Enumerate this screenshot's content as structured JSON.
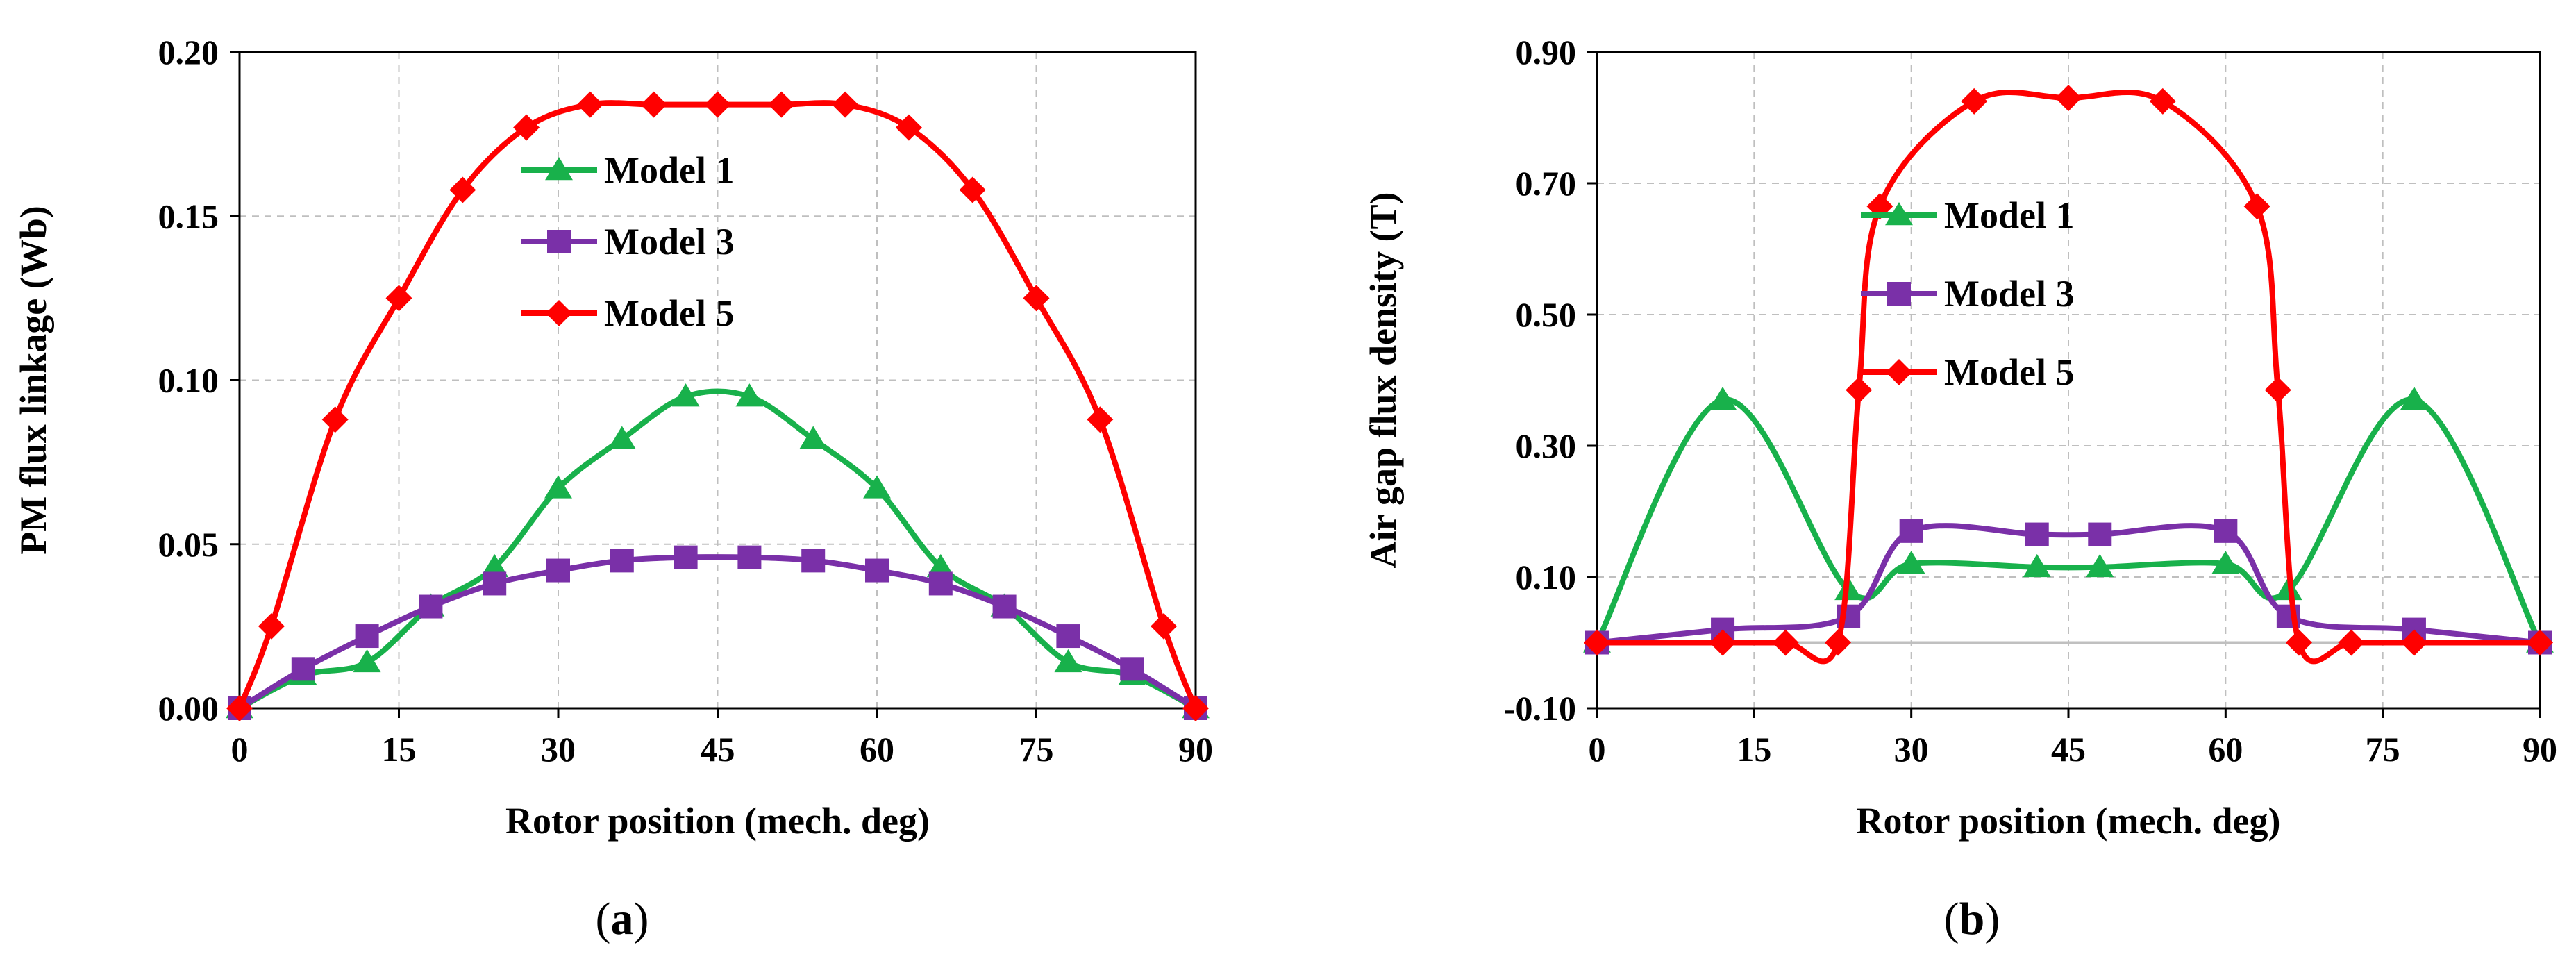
{
  "colors": {
    "model1": "#18b14b",
    "model3": "#7a30a8",
    "model5": "#ff0000",
    "grid": "#bfbfbf",
    "zero": "#c0c0c0"
  },
  "chart_data": [
    {
      "type": "line",
      "panel": "(a)",
      "panel_letter": "a",
      "xlabel": "Rotor position (mech. deg)",
      "ylabel": "PM flux linkage (Wb)",
      "xlim": [
        0,
        90
      ],
      "ylim": [
        0,
        0.2
      ],
      "xticks": [
        0,
        15,
        30,
        45,
        60,
        75,
        90
      ],
      "yticks": [
        0,
        0.05,
        0.1,
        0.15,
        0.2
      ],
      "xtick_labels": [
        "0",
        "15",
        "30",
        "45",
        "60",
        "75",
        "90"
      ],
      "ytick_labels": [
        "0.00",
        "0.05",
        "0.10",
        "0.15",
        "0.20"
      ],
      "legend": [
        "Model 1",
        "Model 3",
        "Model 5"
      ],
      "series": [
        {
          "name": "Model 1",
          "marker": "triangle",
          "x": [
            0,
            6,
            12,
            18,
            24,
            30,
            36,
            42,
            48,
            54,
            60,
            66,
            72,
            78,
            84,
            90
          ],
          "y": [
            0,
            0.01,
            0.014,
            0.031,
            0.043,
            0.067,
            0.082,
            0.095,
            0.095,
            0.082,
            0.067,
            0.043,
            0.031,
            0.014,
            0.01,
            0
          ]
        },
        {
          "name": "Model 3",
          "marker": "square",
          "x": [
            0,
            6,
            12,
            18,
            24,
            30,
            36,
            42,
            48,
            54,
            60,
            66,
            72,
            78,
            84,
            90
          ],
          "y": [
            0,
            0.012,
            0.022,
            0.031,
            0.038,
            0.042,
            0.045,
            0.046,
            0.046,
            0.045,
            0.042,
            0.038,
            0.031,
            0.022,
            0.012,
            0
          ]
        },
        {
          "name": "Model 5",
          "marker": "diamond",
          "x": [
            0,
            3,
            9,
            15,
            21,
            27,
            33,
            39,
            45,
            51,
            57,
            63,
            69,
            75,
            81,
            87,
            90
          ],
          "y": [
            0,
            0.025,
            0.088,
            0.125,
            0.158,
            0.177,
            0.184,
            0.184,
            0.184,
            0.184,
            0.184,
            0.177,
            0.158,
            0.125,
            0.088,
            0.025,
            0
          ]
        }
      ]
    },
    {
      "type": "line",
      "panel": "(b)",
      "panel_letter": "b",
      "xlabel": "Rotor position (mech. deg)",
      "ylabel": "Air gap flux density (T)",
      "xlim": [
        0,
        90
      ],
      "ylim": [
        -0.1,
        0.9
      ],
      "xticks": [
        0,
        15,
        30,
        45,
        60,
        75,
        90
      ],
      "yticks": [
        -0.1,
        0.1,
        0.3,
        0.5,
        0.7,
        0.9
      ],
      "xtick_labels": [
        "0",
        "15",
        "30",
        "45",
        "60",
        "75",
        "90"
      ],
      "ytick_labels": [
        "-0.10",
        "0.10",
        "0.30",
        "0.50",
        "0.70",
        "0.90"
      ],
      "legend": [
        "Model 1",
        "Model 3",
        "Model 5"
      ],
      "series": [
        {
          "name": "Model 1",
          "marker": "triangle",
          "x": [
            0,
            12,
            24,
            30,
            42,
            48,
            60,
            66,
            78,
            90
          ],
          "y": [
            0,
            0.37,
            0.08,
            0.12,
            0.115,
            0.115,
            0.12,
            0.08,
            0.37,
            0
          ]
        },
        {
          "name": "Model 3",
          "marker": "square",
          "x": [
            0,
            12,
            24,
            30,
            42,
            48,
            60,
            66,
            78,
            90
          ],
          "y": [
            0,
            0.02,
            0.04,
            0.17,
            0.165,
            0.165,
            0.17,
            0.04,
            0.02,
            0
          ]
        },
        {
          "name": "Model 5",
          "marker": "diamond",
          "x": [
            0,
            12,
            18,
            23,
            25,
            27,
            36,
            45,
            54,
            63,
            65,
            67,
            72,
            78,
            90
          ],
          "y": [
            0,
            0,
            0,
            0,
            0.385,
            0.665,
            0.825,
            0.83,
            0.825,
            0.665,
            0.385,
            0,
            0,
            0,
            0
          ]
        }
      ]
    }
  ]
}
